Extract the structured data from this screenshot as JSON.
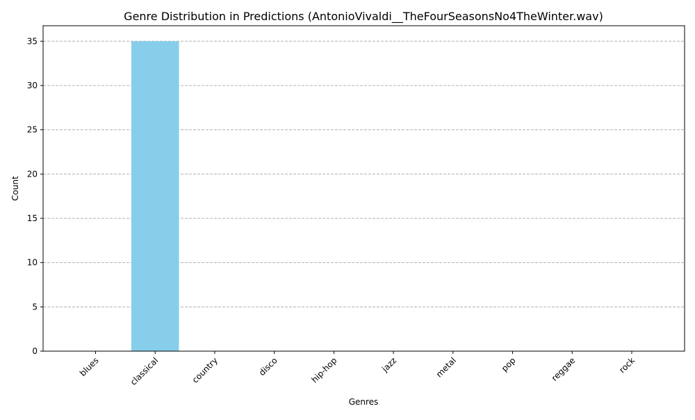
{
  "chart_data": {
    "type": "bar",
    "title": "Genre Distribution in Predictions (AntonioVivaldi__TheFourSeasonsNo4TheWinter.wav)",
    "xlabel": "Genres",
    "ylabel": "Count",
    "categories": [
      "blues",
      "classical",
      "country",
      "disco",
      "hip-hop",
      "jazz",
      "metal",
      "pop",
      "reggae",
      "rock"
    ],
    "values": [
      0,
      35,
      0,
      0,
      0,
      0,
      0,
      0,
      0,
      0
    ],
    "ylim": [
      0,
      36.75
    ],
    "yticks": [
      0,
      5,
      10,
      15,
      20,
      25,
      30,
      35
    ],
    "grid": "y-dashed",
    "bar_color": "#87ceeb",
    "grid_color": "#b0b0b0",
    "xtick_rotation": "45-degrees"
  }
}
